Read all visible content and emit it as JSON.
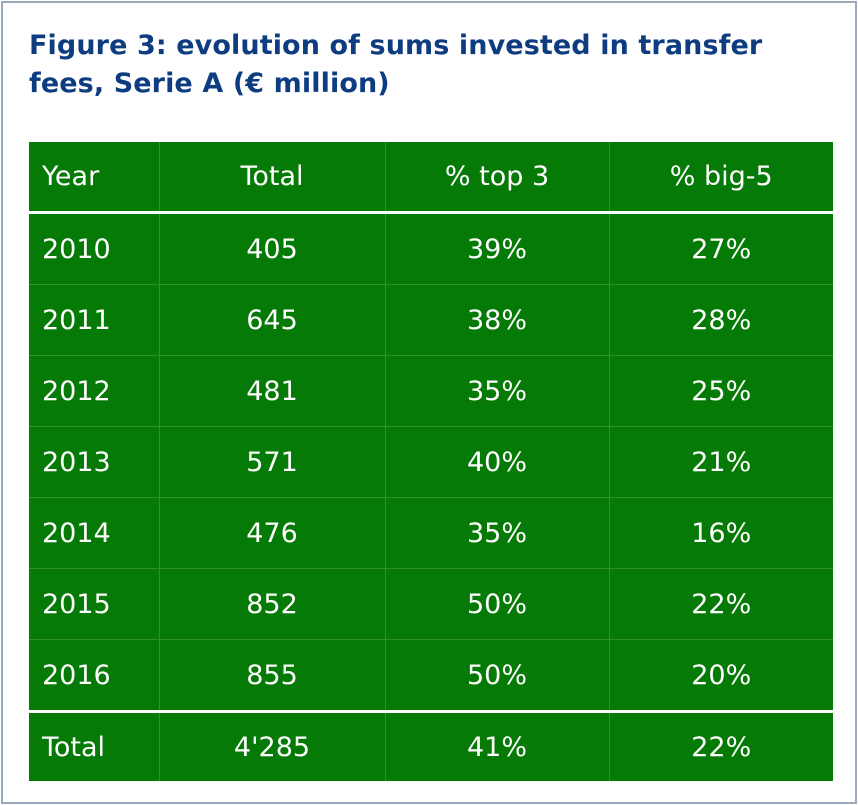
{
  "title": "Figure 3: evolution of sums invested in transfer fees, Serie A (€ million)",
  "colors": {
    "title": "#0d3d80",
    "table_bg": "#067a06",
    "text": "#ffffff",
    "frame": "#9aaabc"
  },
  "chart_data": {
    "type": "table",
    "title": "Figure 3: evolution of sums invested in transfer fees, Serie A (€ million)",
    "columns": [
      "Year",
      "Total",
      "% top 3",
      "% big-5"
    ],
    "rows": [
      [
        "2010",
        "405",
        "39%",
        "27%"
      ],
      [
        "2011",
        "645",
        "38%",
        "28%"
      ],
      [
        "2012",
        "481",
        "35%",
        "25%"
      ],
      [
        "2013",
        "571",
        "40%",
        "21%"
      ],
      [
        "2014",
        "476",
        "35%",
        "16%"
      ],
      [
        "2015",
        "852",
        "50%",
        "22%"
      ],
      [
        "2016",
        "855",
        "50%",
        "20%"
      ]
    ],
    "total_row": [
      "Total",
      "4'285",
      "41%",
      "22%"
    ]
  }
}
